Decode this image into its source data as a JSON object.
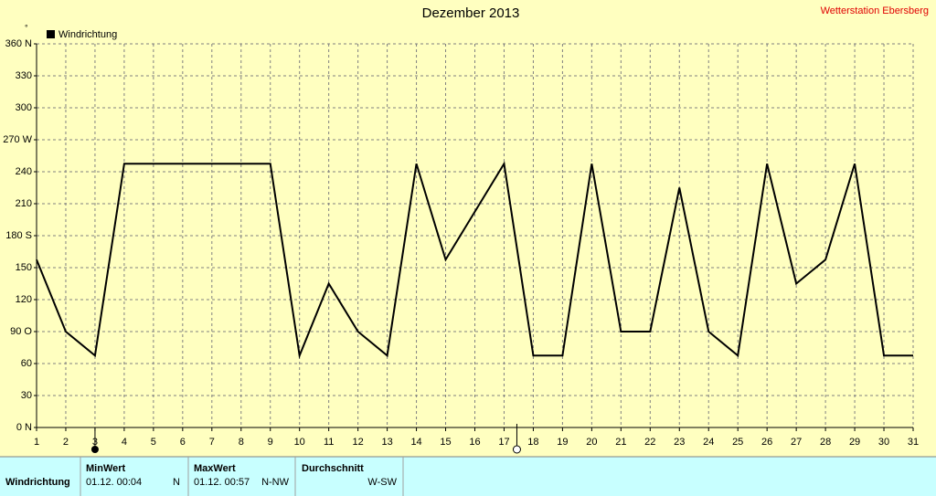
{
  "chart_data": {
    "type": "line",
    "title": "Dezember 2013",
    "station": "Wetterstation Ebersberg",
    "y_unit": "°",
    "x": [
      1,
      2,
      3,
      4,
      5,
      6,
      7,
      8,
      9,
      10,
      11,
      12,
      13,
      14,
      15,
      16,
      17,
      18,
      19,
      20,
      21,
      22,
      23,
      24,
      25,
      26,
      27,
      28,
      29,
      30,
      31
    ],
    "xlim": [
      1,
      31
    ],
    "xticks": [
      1,
      2,
      3,
      4,
      5,
      6,
      7,
      8,
      9,
      10,
      11,
      12,
      13,
      14,
      15,
      16,
      17,
      18,
      19,
      20,
      21,
      22,
      23,
      24,
      25,
      26,
      27,
      28,
      29,
      30,
      31
    ],
    "ylim": [
      0,
      360
    ],
    "yticks": [
      {
        "value": 0,
        "label": "0 N"
      },
      30,
      60,
      {
        "value": 90,
        "label": "90 O"
      },
      120,
      150,
      {
        "value": 180,
        "label": "180 S"
      },
      210,
      240,
      {
        "value": 270,
        "label": "270 W"
      },
      300,
      330,
      {
        "value": 360,
        "label": "360 N"
      }
    ],
    "grid": true,
    "series": [
      {
        "name": "Windrichtung",
        "color": "#000000",
        "values": [
          157.5,
          90,
          67.5,
          247.5,
          247.5,
          247.5,
          247.5,
          247.5,
          247.5,
          67.5,
          135,
          90,
          67.5,
          247.5,
          157.5,
          202.5,
          247.5,
          67.5,
          67.5,
          247.5,
          90,
          90,
          225,
          90,
          67.5,
          247.5,
          135,
          157.5,
          247.5,
          67.5,
          67.5
        ]
      }
    ]
  },
  "panel": {
    "row_label": "Windrichtung",
    "columns": [
      {
        "header": "MinWert",
        "date": "01.12.  00:04",
        "value": "N"
      },
      {
        "header": "MaxWert",
        "date": "01.12.  00:57",
        "value": "N-NW"
      },
      {
        "header": "Durchschnitt",
        "value": "W-SW"
      }
    ]
  }
}
